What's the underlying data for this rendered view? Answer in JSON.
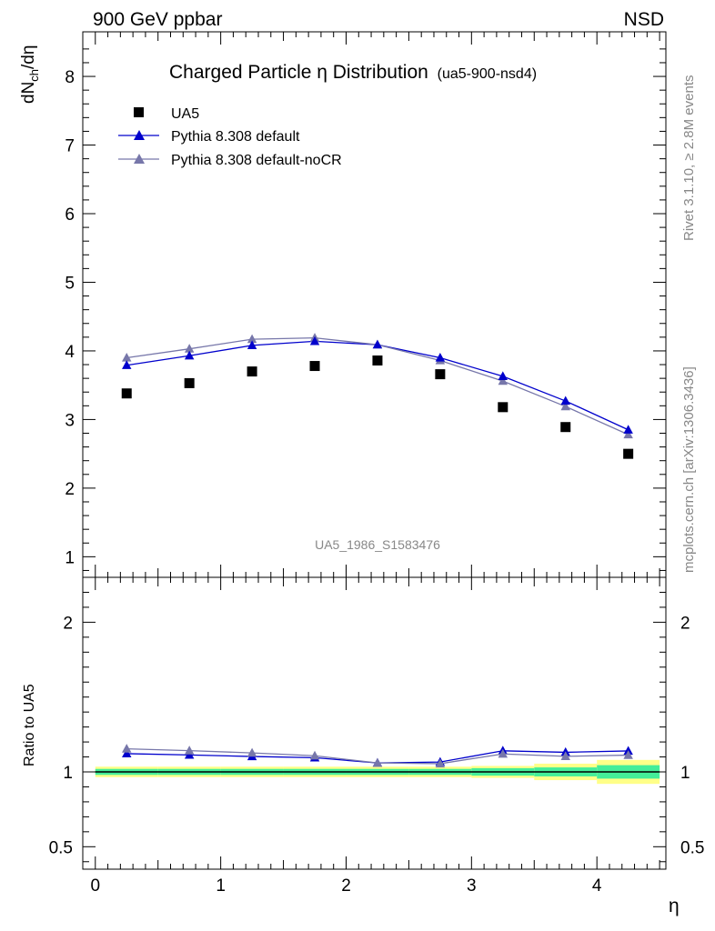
{
  "header": {
    "left": "900 GeV ppbar",
    "right": "NSD"
  },
  "side": {
    "version": "Rivet 3.1.10, ≥ 2.8M events",
    "source": "mcplots.cern.ch [arXiv:1306.3436]"
  },
  "colors": {
    "data": "#000000",
    "default": "#0000cc",
    "nocr": "#7777aa",
    "band_inner": "#44ee99",
    "band_outer": "#ffff88"
  },
  "chart_data": [
    {
      "type": "scatter",
      "title": "Charged Particle η Distribution",
      "title_tag": "(ua5-900-nsd4)",
      "watermark": "UA5_1986_S1583476",
      "xlabel": "η",
      "ylabel": "dN_ch/dη",
      "xlim": [
        -0.1,
        4.55
      ],
      "ylim": [
        0.7,
        8.65
      ],
      "legend_position": "top-left",
      "x": [
        0.25,
        0.75,
        1.25,
        1.75,
        2.25,
        2.75,
        3.25,
        3.75,
        4.25
      ],
      "xticks": [
        "0",
        "1",
        "2",
        "3",
        "4"
      ],
      "yticks": [
        "1",
        "2",
        "3",
        "4",
        "5",
        "6",
        "7",
        "8"
      ],
      "series": [
        {
          "name": "UA5",
          "marker": "square",
          "values": [
            3.38,
            3.53,
            3.7,
            3.78,
            3.86,
            3.66,
            3.18,
            2.89,
            2.5
          ]
        },
        {
          "name": "Pythia 8.308 default",
          "marker": "triangle",
          "values": [
            3.79,
            3.93,
            4.08,
            4.14,
            4.09,
            3.9,
            3.63,
            3.27,
            2.85
          ]
        },
        {
          "name": "Pythia 8.308 default-noCR",
          "marker": "triangle",
          "values": [
            3.9,
            4.03,
            4.17,
            4.19,
            4.09,
            3.86,
            3.56,
            3.19,
            2.78
          ]
        }
      ]
    },
    {
      "type": "scatter",
      "ylabel": "Ratio to UA5",
      "xlabel": "η",
      "xlim": [
        -0.1,
        4.55
      ],
      "ylim": [
        0.35,
        2.3
      ],
      "yticks": [
        "0.5",
        "1",
        "2"
      ],
      "x": [
        0.25,
        0.75,
        1.25,
        1.75,
        2.25,
        2.75,
        3.25,
        3.75,
        4.25
      ],
      "uncertainty_inner": [
        0.02,
        0.02,
        0.02,
        0.02,
        0.02,
        0.02,
        0.025,
        0.03,
        0.045
      ],
      "uncertainty_outer": [
        0.035,
        0.035,
        0.035,
        0.035,
        0.035,
        0.035,
        0.04,
        0.055,
        0.08
      ],
      "series": [
        {
          "name": "Pythia 8.308 default",
          "values": [
            1.122,
            1.113,
            1.103,
            1.095,
            1.06,
            1.066,
            1.141,
            1.131,
            1.14
          ]
        },
        {
          "name": "Pythia 8.308 default-noCR",
          "values": [
            1.154,
            1.142,
            1.127,
            1.108,
            1.06,
            1.055,
            1.12,
            1.104,
            1.112
          ]
        }
      ]
    }
  ]
}
